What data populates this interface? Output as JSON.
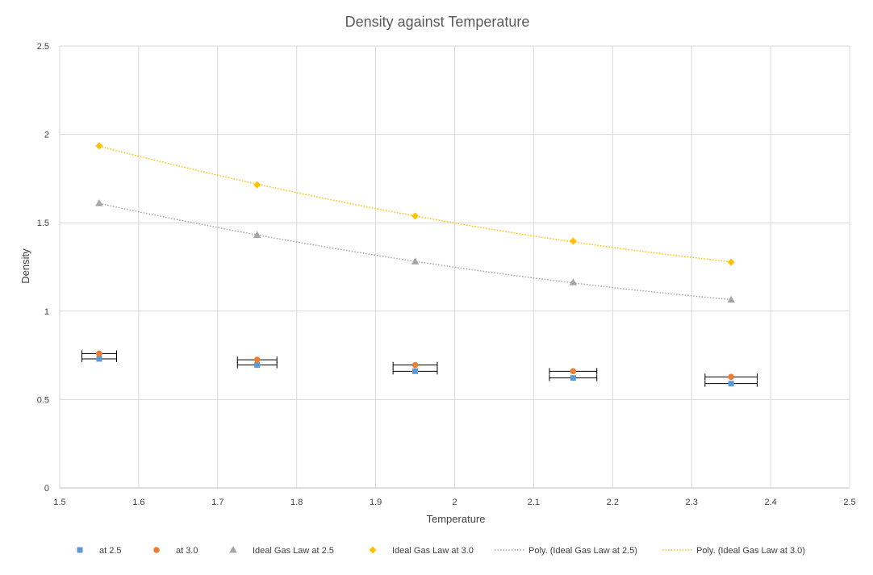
{
  "chart_data": {
    "type": "scatter",
    "title": "Density against Temperature",
    "xlabel": "Temperature",
    "ylabel": "Density",
    "xlim": [
      1.5,
      2.5
    ],
    "ylim": [
      0,
      2.5
    ],
    "x_ticks": [
      "1.5",
      "1.6",
      "1.7",
      "1.8",
      "1.9",
      "2",
      "2.1",
      "2.2",
      "2.3",
      "2.4",
      "2.5"
    ],
    "y_ticks": [
      "0",
      "0.5",
      "1",
      "1.5",
      "2",
      "2.5"
    ],
    "grid": true,
    "legend_position": "bottom",
    "series": [
      {
        "name": "at 2.5",
        "marker": "square",
        "color": "#5B9BD5",
        "x": [
          1.55,
          1.75,
          1.95,
          2.15,
          2.35
        ],
        "y": [
          0.73,
          0.695,
          0.66,
          0.622,
          0.59
        ],
        "x_error": [
          0.022,
          0.025,
          0.028,
          0.03,
          0.033
        ]
      },
      {
        "name": "at 3.0",
        "marker": "circle",
        "color": "#ED7D31",
        "x": [
          1.55,
          1.75,
          1.95,
          2.15,
          2.35
        ],
        "y": [
          0.76,
          0.725,
          0.695,
          0.66,
          0.628
        ],
        "x_error": [
          0.022,
          0.025,
          0.028,
          0.03,
          0.033
        ]
      },
      {
        "name": "Ideal Gas Law at 2.5",
        "marker": "triangle",
        "color": "#A5A5A5",
        "x": [
          1.55,
          1.75,
          1.95,
          2.15,
          2.35
        ],
        "y": [
          1.61,
          1.43,
          1.28,
          1.163,
          1.064
        ]
      },
      {
        "name": "Ideal Gas Law at 3.0",
        "marker": "diamond",
        "color": "#FFC000",
        "x": [
          1.55,
          1.75,
          1.95,
          2.15,
          2.35
        ],
        "y": [
          1.935,
          1.715,
          1.538,
          1.396,
          1.277
        ]
      }
    ],
    "trendlines": [
      {
        "name": "Poly. (Ideal Gas Law at 2.5)",
        "of": "Ideal Gas Law at 2.5",
        "type": "polynomial",
        "style": "dotted",
        "color": "#A5A5A5"
      },
      {
        "name": "Poly. (Ideal Gas Law at 3.0)",
        "of": "Ideal Gas Law at 3.0",
        "type": "polynomial",
        "style": "dotted",
        "color": "#FFC000"
      }
    ]
  }
}
